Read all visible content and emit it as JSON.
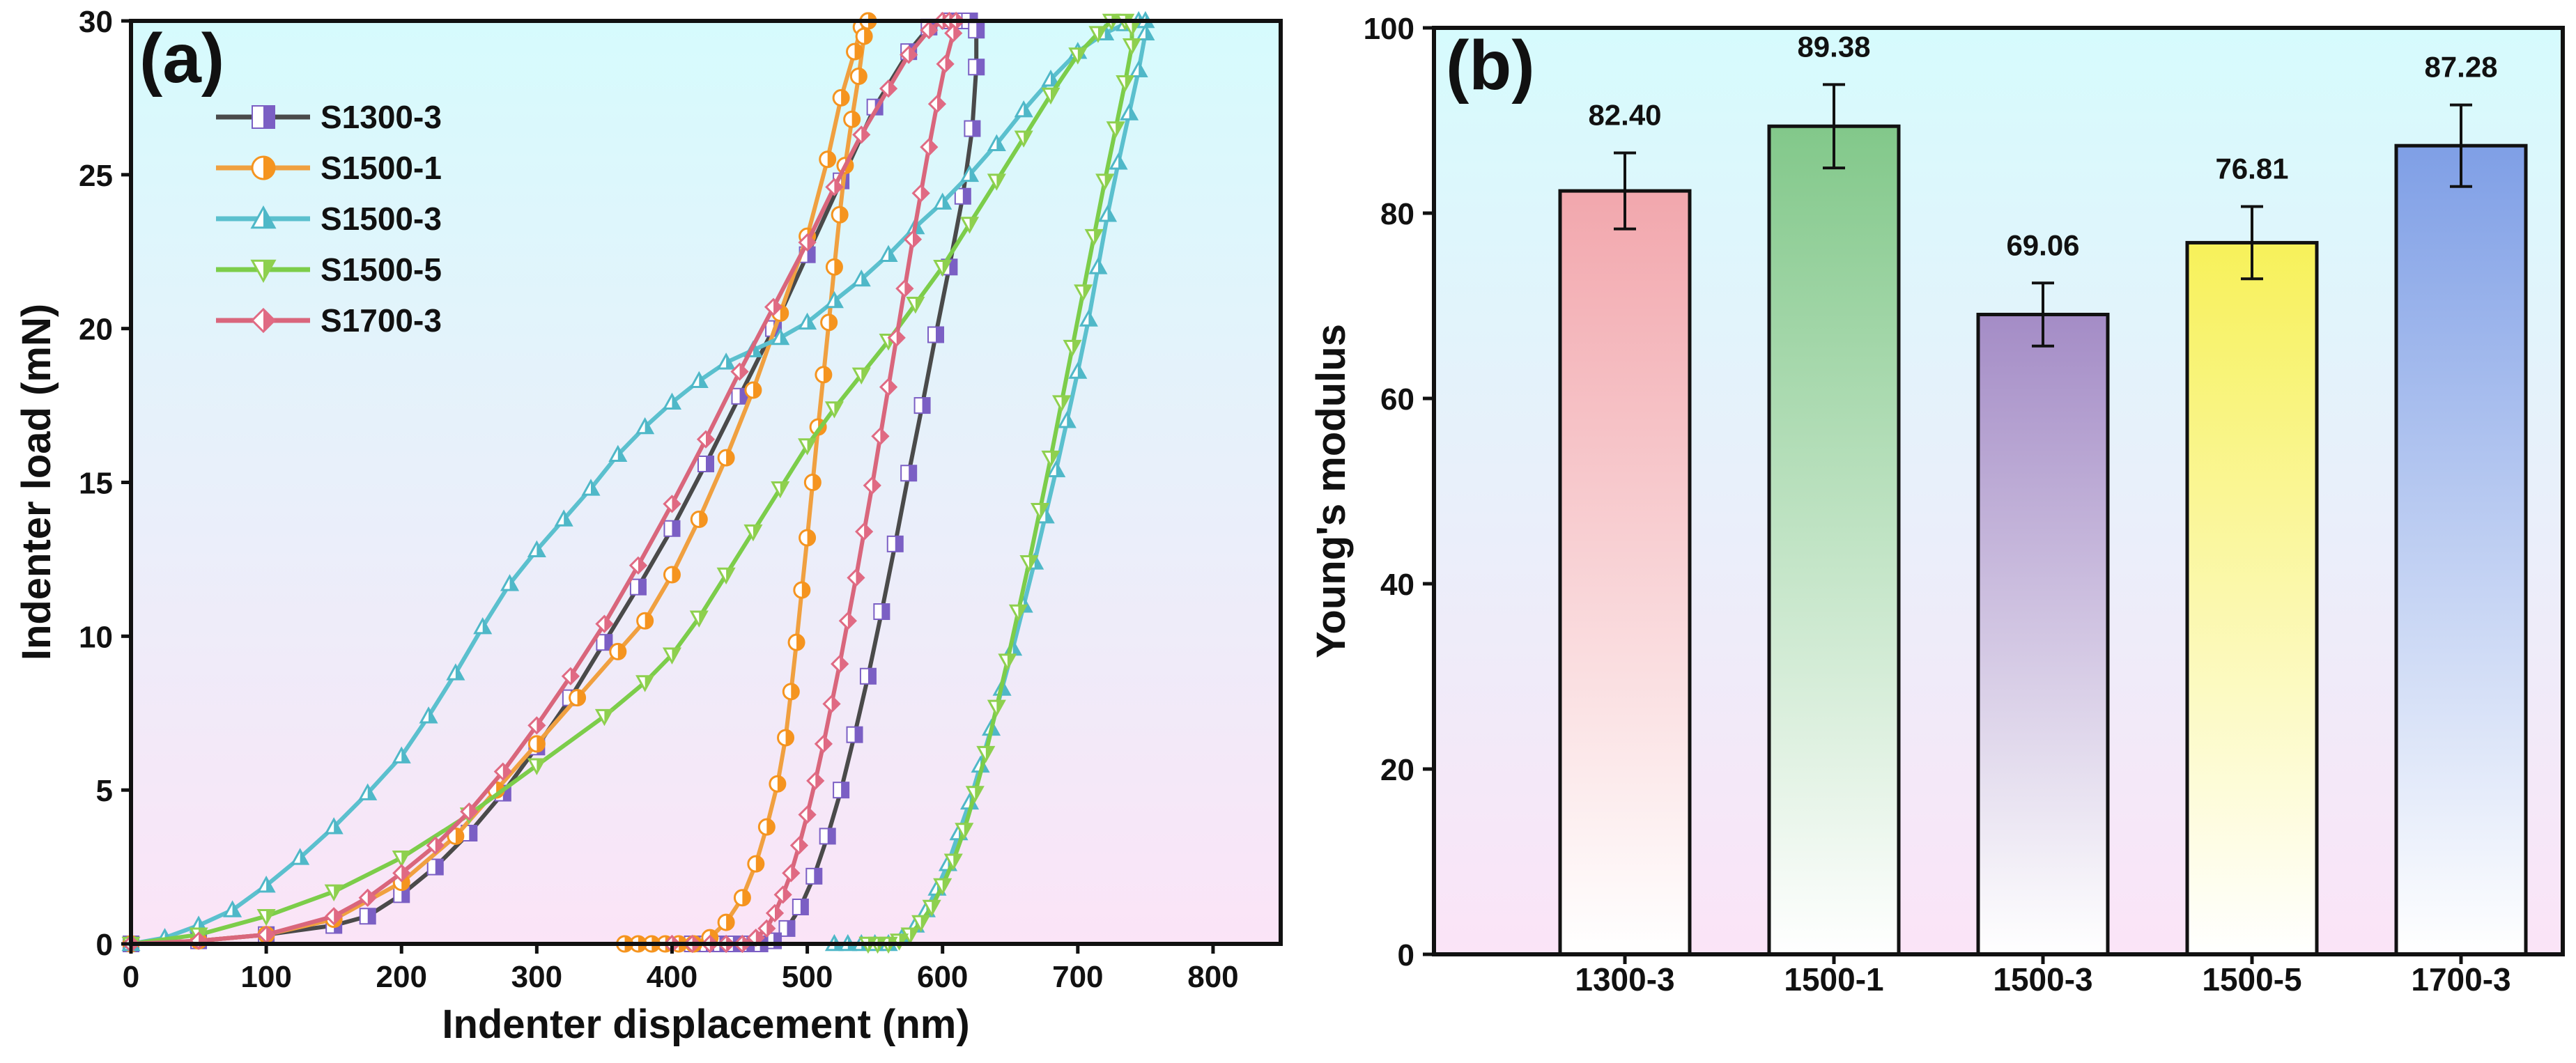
{
  "chart_data": [
    {
      "panel_label": "(a)",
      "type": "line",
      "xlabel": "Indenter displacement (nm)",
      "ylabel": "Indenter load (mN)",
      "xlim": [
        0,
        850
      ],
      "ylim": [
        0,
        30
      ],
      "xticks": [
        "0",
        "100",
        "200",
        "300",
        "400",
        "500",
        "600",
        "700",
        "800"
      ],
      "yticks": [
        "0",
        "5",
        "10",
        "15",
        "20",
        "25",
        "30"
      ],
      "legend_position": "top-left",
      "series": [
        {
          "name": "S1300-3",
          "color": "#4a4a4a",
          "marker_color": "#7b5fc4",
          "marker": "half-square",
          "x": [
            0,
            50,
            100,
            150,
            175,
            200,
            225,
            250,
            275,
            300,
            325,
            350,
            375,
            400,
            425,
            450,
            475,
            500,
            525,
            550,
            575,
            590,
            605,
            615,
            620,
            625,
            625,
            622,
            615,
            605,
            595,
            585,
            575,
            565,
            555,
            545,
            535,
            525,
            515,
            505,
            495,
            485,
            475,
            465,
            455,
            445,
            435,
            425,
            415
          ],
          "y": [
            0,
            0.1,
            0.3,
            0.6,
            0.9,
            1.6,
            2.5,
            3.6,
            4.9,
            6.4,
            8.0,
            9.8,
            11.6,
            13.5,
            15.6,
            17.8,
            20.0,
            22.4,
            24.8,
            27.2,
            29.0,
            29.8,
            30.0,
            30.0,
            30.0,
            29.7,
            28.5,
            26.5,
            24.3,
            22.0,
            19.8,
            17.5,
            15.3,
            13.0,
            10.8,
            8.7,
            6.8,
            5.0,
            3.5,
            2.2,
            1.2,
            0.5,
            0.1,
            0,
            0,
            0,
            0,
            0,
            0
          ]
        },
        {
          "name": "S1500-1",
          "color": "#f0a040",
          "marker_color": "#f5941f",
          "marker": "half-circle",
          "x": [
            0,
            50,
            100,
            150,
            200,
            240,
            270,
            300,
            330,
            360,
            380,
            400,
            420,
            440,
            460,
            480,
            500,
            515,
            525,
            535,
            540,
            545,
            545,
            542,
            538,
            533,
            528,
            524,
            520,
            516,
            512,
            508,
            504,
            500,
            496,
            492,
            488,
            484,
            478,
            470,
            462,
            452,
            440,
            428,
            416,
            405,
            395,
            385,
            375,
            365
          ],
          "y": [
            0,
            0.1,
            0.3,
            0.8,
            2.0,
            3.5,
            5.0,
            6.5,
            8.0,
            9.5,
            10.5,
            12.0,
            13.8,
            15.8,
            18.0,
            20.5,
            23.0,
            25.5,
            27.5,
            29.0,
            29.8,
            30.0,
            30.0,
            29.5,
            28.2,
            26.8,
            25.3,
            23.7,
            22.0,
            20.2,
            18.5,
            16.8,
            15.0,
            13.2,
            11.5,
            9.8,
            8.2,
            6.7,
            5.2,
            3.8,
            2.6,
            1.5,
            0.7,
            0.2,
            0,
            0,
            0,
            0,
            0,
            0
          ]
        },
        {
          "name": "S1500-3",
          "color": "#5bc0ce",
          "marker_color": "#4fb8c8",
          "marker": "triangle-up",
          "x": [
            0,
            25,
            50,
            75,
            100,
            125,
            150,
            175,
            200,
            220,
            240,
            260,
            280,
            300,
            320,
            340,
            360,
            380,
            400,
            420,
            440,
            460,
            480,
            500,
            520,
            540,
            560,
            580,
            600,
            620,
            640,
            660,
            680,
            700,
            720,
            735,
            745,
            750,
            750,
            745,
            738,
            730,
            722,
            715,
            708,
            700,
            692,
            684,
            676,
            668,
            660,
            652,
            644,
            636,
            628,
            620,
            612,
            604,
            596,
            588,
            580,
            570,
            560,
            550,
            540,
            530,
            520
          ],
          "y": [
            0,
            0.2,
            0.6,
            1.1,
            1.9,
            2.8,
            3.8,
            4.9,
            6.1,
            7.4,
            8.8,
            10.3,
            11.7,
            12.8,
            13.8,
            14.8,
            15.9,
            16.8,
            17.6,
            18.3,
            18.9,
            19.3,
            19.7,
            20.2,
            20.9,
            21.6,
            22.4,
            23.3,
            24.1,
            25.0,
            26.0,
            27.1,
            28.1,
            29.0,
            29.6,
            29.9,
            30.0,
            30.0,
            29.6,
            28.4,
            27.0,
            25.4,
            23.7,
            22.0,
            20.3,
            18.6,
            17.0,
            15.4,
            13.9,
            12.4,
            11.0,
            9.6,
            8.3,
            7.0,
            5.8,
            4.6,
            3.6,
            2.6,
            1.8,
            1.1,
            0.6,
            0.2,
            0,
            0,
            0,
            0,
            0
          ]
        },
        {
          "name": "S1500-5",
          "color": "#7ccd4a",
          "marker_color": "#8ed04e",
          "marker": "triangle-down",
          "x": [
            0,
            50,
            100,
            150,
            200,
            250,
            300,
            350,
            380,
            400,
            420,
            440,
            460,
            480,
            500,
            520,
            540,
            560,
            580,
            600,
            620,
            640,
            660,
            680,
            700,
            715,
            725,
            735,
            740,
            740,
            735,
            728,
            720,
            712,
            704,
            696,
            688,
            680,
            672,
            664,
            656,
            648,
            640,
            632,
            624,
            616,
            608,
            600,
            592,
            584,
            576,
            568,
            560,
            552,
            545
          ],
          "y": [
            0,
            0.3,
            0.9,
            1.7,
            2.8,
            4.2,
            5.8,
            7.4,
            8.5,
            9.4,
            10.6,
            12.0,
            13.4,
            14.8,
            16.2,
            17.4,
            18.5,
            19.6,
            20.8,
            22.0,
            23.4,
            24.8,
            26.2,
            27.6,
            28.9,
            29.6,
            30.0,
            30.0,
            29.8,
            29.2,
            28.0,
            26.5,
            24.8,
            23.0,
            21.2,
            19.4,
            17.6,
            15.8,
            14.1,
            12.4,
            10.8,
            9.2,
            7.7,
            6.2,
            4.9,
            3.7,
            2.7,
            1.9,
            1.2,
            0.7,
            0.3,
            0.1,
            0,
            0,
            0
          ]
        },
        {
          "name": "S1700-3",
          "color": "#d9667c",
          "marker_color": "#e06a83",
          "marker": "half-diamond",
          "x": [
            0,
            50,
            100,
            150,
            175,
            200,
            225,
            250,
            275,
            300,
            325,
            350,
            375,
            400,
            425,
            450,
            475,
            500,
            520,
            540,
            560,
            575,
            590,
            600,
            605,
            610,
            608,
            602,
            596,
            590,
            584,
            578,
            572,
            566,
            560,
            554,
            548,
            542,
            536,
            530,
            524,
            518,
            512,
            506,
            500,
            494,
            488,
            482,
            476,
            470,
            462,
            452,
            440,
            428,
            415,
            400
          ],
          "y": [
            0,
            0.1,
            0.3,
            0.9,
            1.5,
            2.3,
            3.2,
            4.3,
            5.6,
            7.1,
            8.7,
            10.4,
            12.3,
            14.3,
            16.4,
            18.6,
            20.7,
            22.8,
            24.6,
            26.3,
            27.8,
            28.9,
            29.7,
            30.0,
            30.0,
            30.0,
            29.6,
            28.6,
            27.3,
            25.9,
            24.4,
            22.9,
            21.3,
            19.7,
            18.1,
            16.5,
            14.9,
            13.4,
            11.9,
            10.5,
            9.1,
            7.8,
            6.5,
            5.3,
            4.2,
            3.2,
            2.3,
            1.6,
            1.0,
            0.5,
            0.2,
            0,
            0,
            0,
            0,
            0
          ]
        }
      ]
    },
    {
      "panel_label": "(b)",
      "type": "bar",
      "xlabel": "",
      "ylabel": "Young's modulus",
      "ylim": [
        0,
        100
      ],
      "yticks": [
        "0",
        "20",
        "40",
        "60",
        "80",
        "100"
      ],
      "categories": [
        "1300-3",
        "1500-1",
        "1500-3",
        "1500-5",
        "1700-3"
      ],
      "values": [
        82.4,
        89.38,
        69.06,
        76.81,
        87.28
      ],
      "value_labels": [
        "82.40",
        "89.38",
        "69.06",
        "76.81",
        "87.28"
      ],
      "errors": [
        4.1,
        4.5,
        3.4,
        3.9,
        4.4
      ],
      "bar_colors": [
        "#f2a7ad",
        "#82c88a",
        "#a48cc6",
        "#f7f15a",
        "#7f9fe6"
      ]
    }
  ]
}
